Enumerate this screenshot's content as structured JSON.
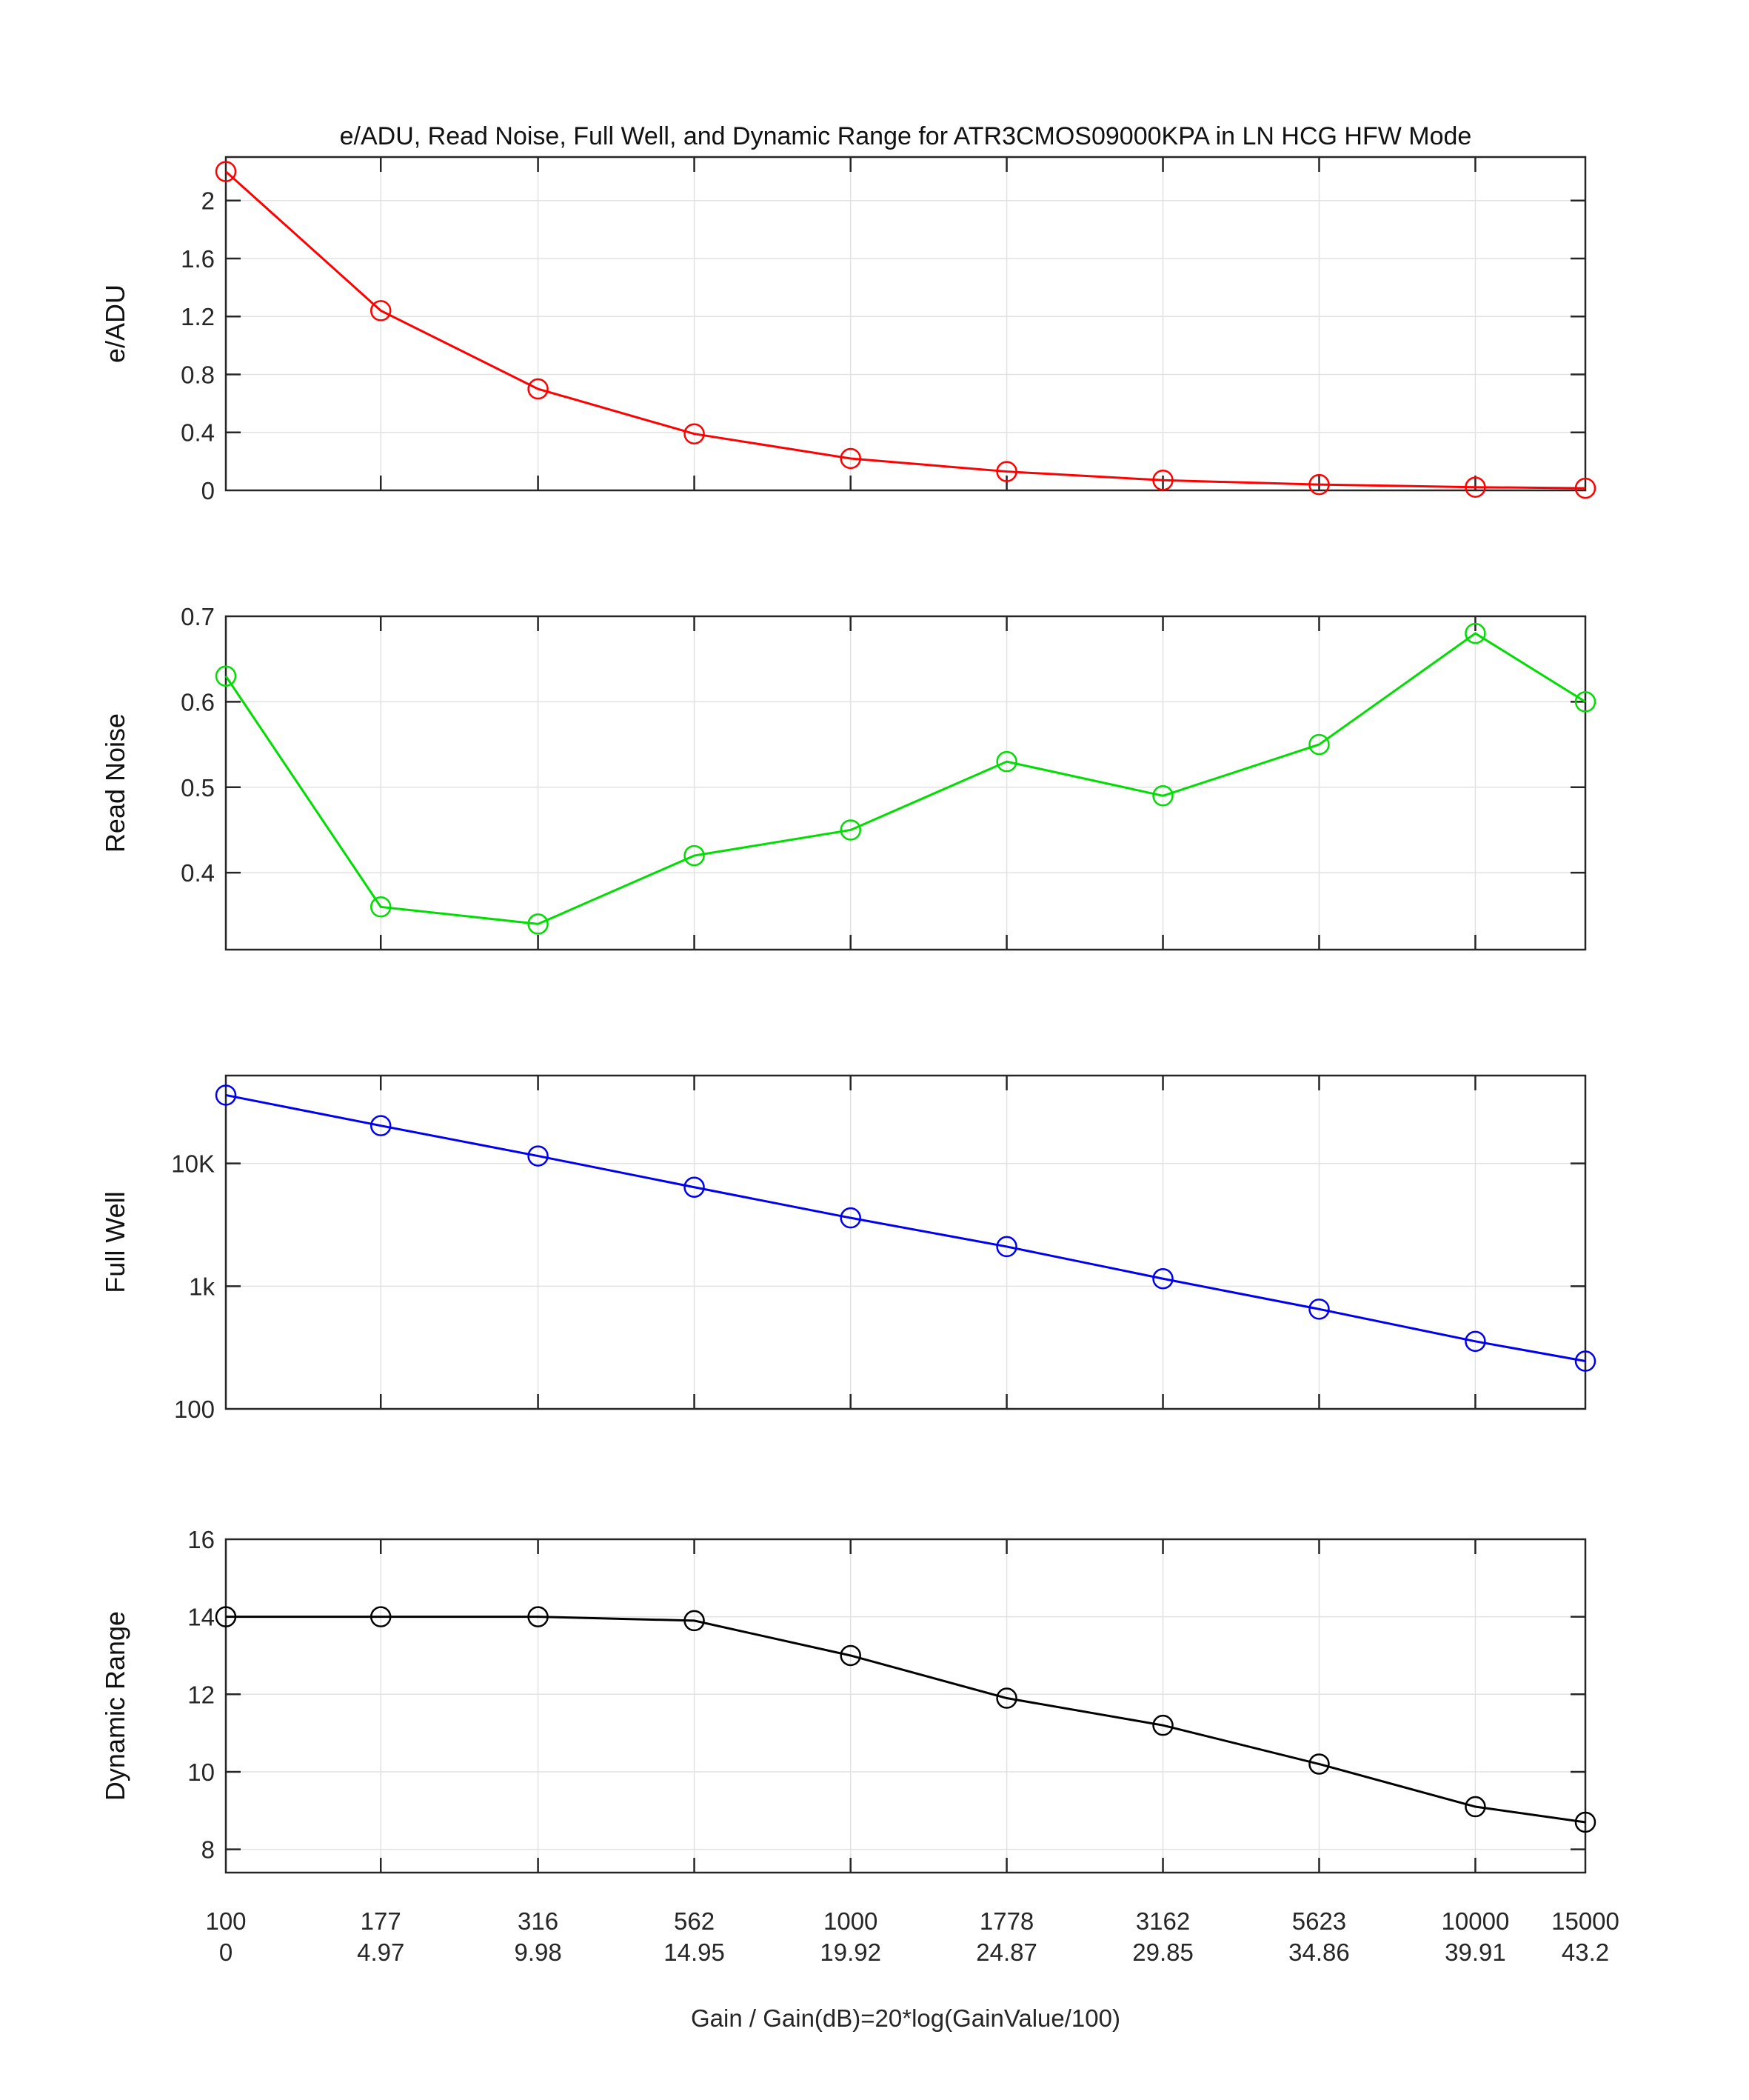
{
  "chart_data": {
    "type": "line",
    "title": "e/ADU, Read Noise, Full Well, and Dynamic Range for ATR3CMOS09000KPA in LN HCG HFW Mode",
    "xlabel": "Gain / Gain(dB)=20*log(GainValue/100)",
    "x_scale": "log",
    "xlim": [
      100,
      15000
    ],
    "x": [
      100,
      177,
      316,
      562,
      1000,
      1778,
      3162,
      5623,
      10000,
      15000
    ],
    "x_tick_labels_gain": [
      "100",
      "177",
      "316",
      "562",
      "1000",
      "1778",
      "3162",
      "5623",
      "10000",
      "15000"
    ],
    "x_tick_labels_db": [
      "0",
      "4.97",
      "9.98",
      "14.95",
      "19.92",
      "24.87",
      "29.85",
      "34.86",
      "39.91",
      "43.2"
    ],
    "grid": true,
    "legend": false,
    "marker": "circle",
    "colors": {
      "eadu": "#ff0000",
      "read_noise": "#00dd00",
      "full_well": "#0000ee",
      "dynamic_range": "#000000",
      "grid": "#e2e2e2",
      "axis": "#262626"
    },
    "subplots": [
      {
        "name": "eadu",
        "ylabel": "e/ADU",
        "color": "#ff0000",
        "y_scale": "linear",
        "ylim": [
          0,
          2.3
        ],
        "y_ticks": [
          0,
          0.4,
          0.8,
          1.2,
          1.6,
          2
        ],
        "y_tick_labels": [
          "0",
          "0.4",
          "0.8",
          "1.2",
          "1.6",
          "2"
        ],
        "values": [
          2.2,
          1.24,
          0.7,
          0.39,
          0.22,
          0.13,
          0.07,
          0.04,
          0.022,
          0.015
        ]
      },
      {
        "name": "read_noise",
        "ylabel": "Read Noise",
        "color": "#00dd00",
        "y_scale": "linear",
        "ylim": [
          0.31,
          0.7
        ],
        "y_ticks": [
          0.4,
          0.5,
          0.6,
          0.7
        ],
        "y_tick_labels": [
          "0.4",
          "0.5",
          "0.6",
          "0.7"
        ],
        "values": [
          0.63,
          0.36,
          0.34,
          0.42,
          0.45,
          0.53,
          0.49,
          0.55,
          0.68,
          0.6
        ]
      },
      {
        "name": "full_well",
        "ylabel": "Full Well",
        "color": "#0000ee",
        "y_scale": "log",
        "ylim": [
          100,
          52000
        ],
        "y_ticks": [
          100,
          1000,
          10000
        ],
        "y_tick_labels": [
          "100",
          "1k",
          "10K"
        ],
        "values": [
          36000,
          20300,
          11500,
          6400,
          3600,
          2100,
          1150,
          650,
          355,
          245
        ]
      },
      {
        "name": "dynamic_range",
        "ylabel": "Dynamic Range",
        "color": "#000000",
        "y_scale": "linear",
        "ylim": [
          7.4,
          16
        ],
        "y_ticks": [
          8,
          10,
          12,
          14,
          16
        ],
        "y_tick_labels": [
          "8",
          "10",
          "12",
          "14",
          "16"
        ],
        "values": [
          14,
          14,
          14,
          13.9,
          13,
          11.9,
          11.2,
          10.2,
          9.1,
          8.7
        ]
      }
    ]
  }
}
